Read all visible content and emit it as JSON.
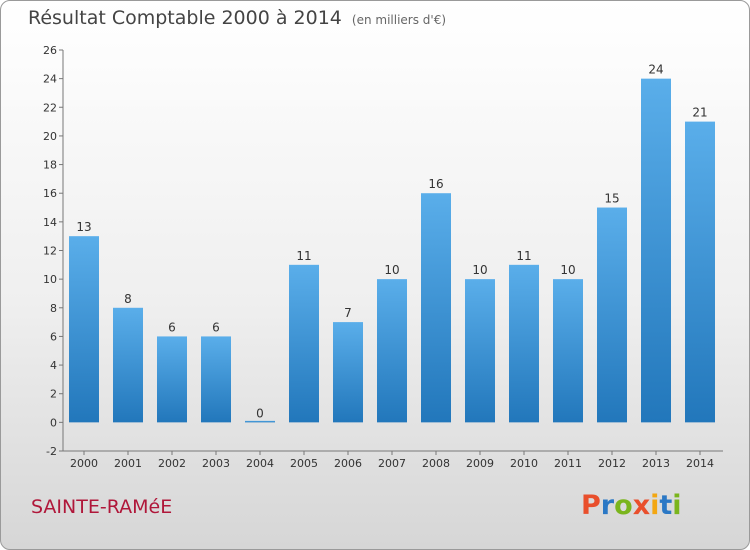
{
  "chart_data": {
    "type": "bar",
    "title": "Résultat Comptable 2000 à 2014",
    "subtitle": "(en milliers d'€)",
    "categories": [
      "2000",
      "2001",
      "2002",
      "2003",
      "2004",
      "2005",
      "2006",
      "2007",
      "2008",
      "2009",
      "2010",
      "2011",
      "2012",
      "2013",
      "2014"
    ],
    "values": [
      13,
      8,
      6,
      6,
      0,
      11,
      7,
      10,
      16,
      10,
      11,
      10,
      15,
      24,
      21
    ],
    "labels": [
      "13",
      "8",
      "6",
      "6",
      "0",
      "11",
      "7",
      "10",
      "16",
      "10",
      "11",
      "10",
      "15",
      "24",
      "21"
    ],
    "yticks": [
      "-2",
      "0",
      "2",
      "4",
      "6",
      "8",
      "10",
      "12",
      "14",
      "16",
      "18",
      "20",
      "22",
      "24",
      "26"
    ],
    "ylim": [
      -2,
      26
    ],
    "grid": false,
    "bar_color": "#3a8fd6"
  },
  "footer": {
    "city": "SAINTE-RAMéE",
    "logo": "Proxiti"
  },
  "logo_colors": [
    "#e94f2c",
    "#2b78c5",
    "#7ab51d",
    "#e94f2c",
    "#f3a712",
    "#2b78c5",
    "#7ab51d"
  ]
}
